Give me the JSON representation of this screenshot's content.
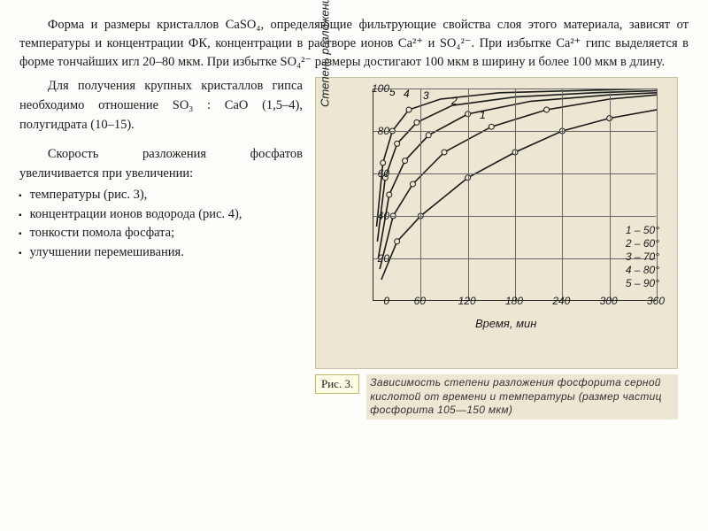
{
  "paragraph_top": "Форма и размеры кристаллов CaSO₄, определяющие фильтрующие свойства слоя этого материала, зависят от температуры и концентрации ФК, концентрации в растворе ионов Ca²⁺ и SO₄²⁻. При избытке Ca²⁺ гипс выделяется в форме тончайших игл 20–80 мкм. При избытке SO₄²⁻ размеры достигают 100 мкм в ширину и более 100 мкм в длину.",
  "left": {
    "intro1": "Для получения крупных кристаллов гипса необходимо отношение SO₃ : CaO (1,5–4), полугидрата (10–15).",
    "intro2": "Скорость разложения фосфатов увеличивается при увеличении:",
    "bullets": [
      "температуры (рис. 3),",
      "концентрации ионов водорода (рис. 4),",
      "тонкости помола фосфата;",
      "улучшении перемешивания."
    ]
  },
  "chart": {
    "type": "line",
    "background_color": "#ece6d3",
    "grid_color": "#666666",
    "axis_color": "#2a2a2a",
    "xlim": [
      0,
      360
    ],
    "ylim": [
      0,
      100
    ],
    "xtick_step": 60,
    "ytick_step": 20,
    "xlabel": "Время, мин",
    "ylabel": "Степень разложения фосфорита, %",
    "xticks": [
      60,
      120,
      180,
      240,
      300,
      360
    ],
    "yticks": [
      0,
      20,
      40,
      60,
      80,
      100
    ],
    "curve_labels": [
      "5",
      "4",
      "3",
      "2",
      "1"
    ],
    "legend": [
      "1 – 50°",
      "2 – 60°",
      "3 – 70°",
      "4 – 80°",
      "5 – 90°"
    ],
    "series": [
      {
        "name": "1",
        "pts": [
          [
            10,
            10
          ],
          [
            30,
            28
          ],
          [
            60,
            40
          ],
          [
            120,
            58
          ],
          [
            180,
            70
          ],
          [
            240,
            80
          ],
          [
            300,
            86
          ],
          [
            360,
            90
          ]
        ]
      },
      {
        "name": "2",
        "pts": [
          [
            8,
            15
          ],
          [
            25,
            40
          ],
          [
            50,
            55
          ],
          [
            90,
            70
          ],
          [
            150,
            82
          ],
          [
            220,
            90
          ],
          [
            300,
            95
          ],
          [
            360,
            97
          ]
        ]
      },
      {
        "name": "3",
        "pts": [
          [
            6,
            20
          ],
          [
            20,
            50
          ],
          [
            40,
            66
          ],
          [
            70,
            78
          ],
          [
            120,
            88
          ],
          [
            200,
            94
          ],
          [
            300,
            97
          ],
          [
            360,
            98
          ]
        ]
      },
      {
        "name": "4",
        "pts": [
          [
            5,
            28
          ],
          [
            15,
            58
          ],
          [
            30,
            74
          ],
          [
            55,
            84
          ],
          [
            100,
            92
          ],
          [
            180,
            96
          ],
          [
            280,
            98
          ],
          [
            360,
            99
          ]
        ]
      },
      {
        "name": "5",
        "pts": [
          [
            4,
            35
          ],
          [
            12,
            65
          ],
          [
            24,
            80
          ],
          [
            45,
            90
          ],
          [
            85,
            95
          ],
          [
            160,
            98
          ],
          [
            260,
            99
          ],
          [
            360,
            100
          ]
        ]
      }
    ],
    "markers": [
      [
        30,
        28
      ],
      [
        60,
        40
      ],
      [
        120,
        58
      ],
      [
        180,
        70
      ],
      [
        240,
        80
      ],
      [
        300,
        86
      ],
      [
        25,
        40
      ],
      [
        50,
        55
      ],
      [
        90,
        70
      ],
      [
        150,
        82
      ],
      [
        220,
        90
      ],
      [
        20,
        50
      ],
      [
        40,
        66
      ],
      [
        70,
        78
      ],
      [
        120,
        88
      ],
      [
        15,
        58
      ],
      [
        30,
        74
      ],
      [
        55,
        84
      ],
      [
        12,
        65
      ],
      [
        24,
        80
      ],
      [
        45,
        90
      ]
    ],
    "figure_label": "Рис. 3.",
    "caption": "Зависимость степени разложения фосфорита серной кислотой от времени и температуры (размер частиц фосфорита 105—150 мкм)"
  }
}
